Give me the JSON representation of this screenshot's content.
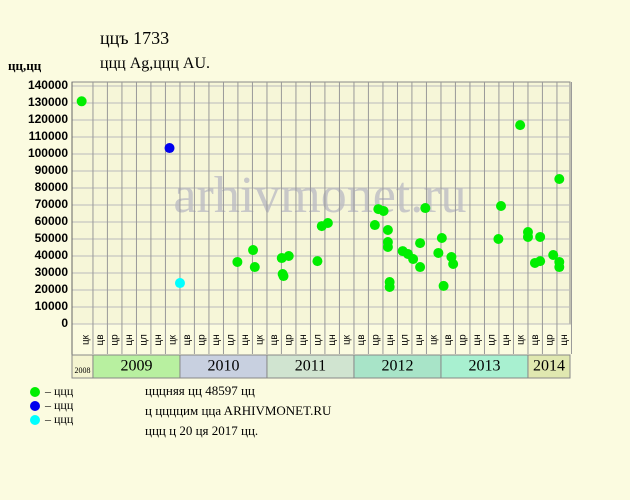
{
  "chart_data": {
    "type": "scatter",
    "title": "ццъ 1733",
    "subtitle": "ццц Ag,ццц AU.",
    "y_label": "цц,цц",
    "watermark": "arhivmonet.ru",
    "xlim": [
      2008.759,
      2014.483
    ],
    "ylim": [
      0,
      140000
    ],
    "yticks": [
      0,
      10000,
      20000,
      30000,
      40000,
      50000,
      60000,
      70000,
      80000,
      90000,
      100000,
      110000,
      120000,
      130000,
      140000
    ],
    "xticks": [
      {
        "value": 2008.917,
        "label": "цк"
      },
      {
        "value": 2009.083,
        "label": "цв"
      },
      {
        "value": 2009.25,
        "label": "цр"
      },
      {
        "value": 2009.417,
        "label": "цн"
      },
      {
        "value": 2009.583,
        "label": "цл"
      },
      {
        "value": 2009.75,
        "label": "цн"
      },
      {
        "value": 2009.917,
        "label": "цк"
      },
      {
        "value": 2010.083,
        "label": "цв"
      },
      {
        "value": 2010.25,
        "label": "цр"
      },
      {
        "value": 2010.417,
        "label": "цн"
      },
      {
        "value": 2010.583,
        "label": "цл"
      },
      {
        "value": 2010.75,
        "label": "цн"
      },
      {
        "value": 2010.917,
        "label": "цк"
      },
      {
        "value": 2011.083,
        "label": "цв"
      },
      {
        "value": 2011.25,
        "label": "цр"
      },
      {
        "value": 2011.417,
        "label": "цн"
      },
      {
        "value": 2011.583,
        "label": "цл"
      },
      {
        "value": 2011.75,
        "label": "цн"
      },
      {
        "value": 2011.917,
        "label": "цк"
      },
      {
        "value": 2012.083,
        "label": "цв"
      },
      {
        "value": 2012.25,
        "label": "цр"
      },
      {
        "value": 2012.417,
        "label": "цн"
      },
      {
        "value": 2012.583,
        "label": "цл"
      },
      {
        "value": 2012.75,
        "label": "цн"
      },
      {
        "value": 2012.917,
        "label": "цк"
      },
      {
        "value": 2013.083,
        "label": "цв"
      },
      {
        "value": 2013.25,
        "label": "цр"
      },
      {
        "value": 2013.417,
        "label": "цн"
      },
      {
        "value": 2013.583,
        "label": "цл"
      },
      {
        "value": 2013.75,
        "label": "цн"
      },
      {
        "value": 2013.917,
        "label": "цк"
      },
      {
        "value": 2014.083,
        "label": "цв"
      },
      {
        "value": 2014.25,
        "label": "цр"
      },
      {
        "value": 2014.417,
        "label": "цн"
      }
    ],
    "year_bands": [
      {
        "label": "2008",
        "start": 2008.759,
        "end": 2009,
        "color": "#f4f4d0"
      },
      {
        "label": "2009",
        "start": 2009,
        "end": 2010,
        "color": "#b8f0a0"
      },
      {
        "label": "2010",
        "start": 2010,
        "end": 2011,
        "color": "#c8d0e0"
      },
      {
        "label": "2011",
        "start": 2011,
        "end": 2012,
        "color": "#d0e4d0"
      },
      {
        "label": "2012",
        "start": 2012,
        "end": 2013,
        "color": "#a8e4c8"
      },
      {
        "label": "2013",
        "start": 2013,
        "end": 2014,
        "color": "#a8f0d0"
      },
      {
        "label": "2014",
        "start": 2014,
        "end": 2014.483,
        "color": "#e0e8b0"
      }
    ],
    "grid": true,
    "series": [
      {
        "name": "– ццц",
        "color": "#00ee00",
        "x": [
          2008.87,
          2010.66,
          2010.84,
          2010.86,
          2011.17,
          2011.19,
          2011.18,
          2011.25,
          2011.58,
          2011.63,
          2011.7,
          2012.24,
          2012.28,
          2012.34,
          2012.39,
          2012.39,
          2012.39,
          2012.41,
          2012.41,
          2012.56,
          2012.62,
          2012.68,
          2012.76,
          2012.76,
          2012.82,
          2012.97,
          2013.01,
          2013.03,
          2013.12,
          2013.14,
          2013.66,
          2013.69,
          2013.91,
          2014.0,
          2014.0,
          2014.08,
          2014.14,
          2014.14,
          2014.29,
          2014.36,
          2014.36,
          2014.36
        ],
        "values": [
          131000,
          36500,
          43500,
          33500,
          38800,
          28200,
          29400,
          40000,
          37000,
          57600,
          59400,
          58200,
          67600,
          66500,
          55300,
          48200,
          45300,
          24700,
          21800,
          42900,
          41200,
          38200,
          33500,
          47600,
          68200,
          41800,
          50600,
          22400,
          39400,
          35300,
          50000,
          69400,
          117000,
          54100,
          51200,
          35900,
          37000,
          51200,
          40600,
          85300,
          36500,
          33500
        ]
      },
      {
        "name": "– ццц",
        "color": "#0000ee",
        "x": [
          2009.88
        ],
        "values": [
          103500
        ]
      },
      {
        "name": "– ццц",
        "color": "#00ffff",
        "x": [
          2010.0
        ],
        "values": [
          24100
        ]
      }
    ],
    "notes": [
      "цццняя цц 48597 цц",
      "ц ццццим ццa ARHIVMONET.RU",
      "ццц ц 20 ця 2017 цц."
    ]
  }
}
